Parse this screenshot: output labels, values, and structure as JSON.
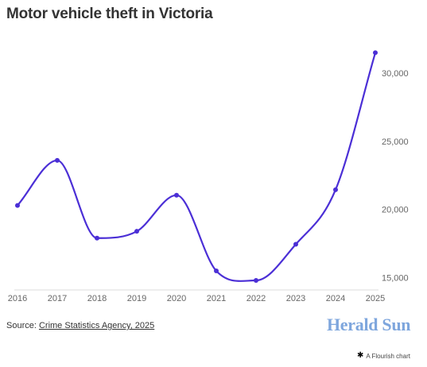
{
  "title": "Motor vehicle theft in Victoria",
  "source": {
    "prefix": "Source: ",
    "link_text": "Crime Statistics Agency, 2025"
  },
  "logo_text": "Herald Sun",
  "flourish_label": "A Flourish chart",
  "colors": {
    "line": "#4b2fd6",
    "grid": "#e5e5e5",
    "logo": "#7ea6dd"
  },
  "chart_data": {
    "type": "line",
    "title": "Motor vehicle theft in Victoria",
    "xlabel": "",
    "ylabel": "",
    "categories": [
      "2016",
      "2017",
      "2018",
      "2019",
      "2020",
      "2021",
      "2022",
      "2023",
      "2024",
      "2025"
    ],
    "values": [
      20300,
      23600,
      17900,
      18400,
      21050,
      15500,
      14800,
      17450,
      21450,
      31500
    ],
    "yticks": [
      "15,000",
      "20,000",
      "25,000",
      "30,000"
    ],
    "ytick_values": [
      15000,
      20000,
      25000,
      30000
    ],
    "ylim": [
      14100,
      32800
    ],
    "grid": false,
    "y_axis_position": "right",
    "smooth": true
  }
}
